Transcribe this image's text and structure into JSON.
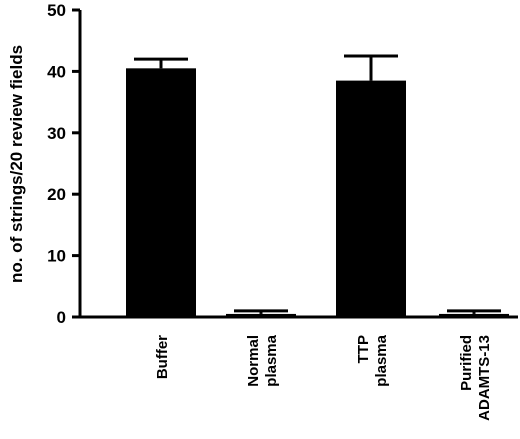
{
  "chart_data": {
    "type": "bar",
    "title": "",
    "xlabel": "",
    "ylabel": "no. of strings/20 review fields",
    "ylim": [
      0,
      50
    ],
    "yticks": [
      0,
      10,
      20,
      30,
      40,
      50
    ],
    "categories": [
      [
        "Buffer"
      ],
      [
        "Normal",
        "plasma"
      ],
      [
        "TTP",
        "plasma"
      ],
      [
        "Purified",
        "ADAMTS-13"
      ]
    ],
    "values": [
      40.5,
      0.5,
      38.5,
      0.5
    ],
    "errors": [
      1.5,
      0.5,
      4.0,
      0.5
    ],
    "bar_color": "#000000",
    "grid": false,
    "legend": "none"
  }
}
